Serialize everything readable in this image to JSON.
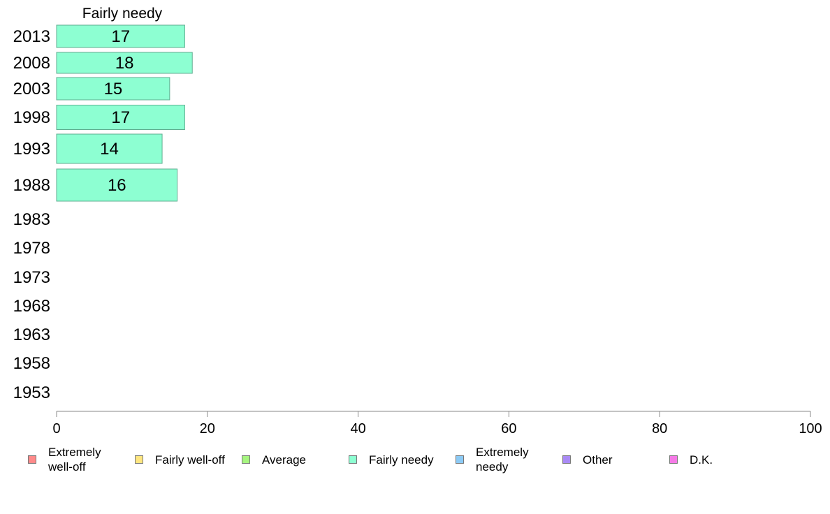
{
  "chart_data": {
    "type": "bar",
    "orientation": "horizontal",
    "title": "Fairly needy",
    "categories": [
      "2013",
      "2008",
      "2003",
      "1998",
      "1993",
      "1988",
      "1983",
      "1978",
      "1973",
      "1968",
      "1963",
      "1958",
      "1953"
    ],
    "series": [
      {
        "name": "Fairly needy",
        "color": "#8dffd2",
        "values": [
          17,
          18,
          15,
          17,
          14,
          16,
          null,
          null,
          null,
          null,
          null,
          null,
          null
        ]
      }
    ],
    "data_labels": [
      "17",
      "18",
      "15",
      "17",
      "14",
      "16"
    ],
    "xlim": [
      0,
      100
    ],
    "xticks": [
      "0",
      "20",
      "40",
      "60",
      "80",
      "100"
    ],
    "grid": false
  },
  "legend": {
    "placement": "bottom",
    "items": [
      {
        "label": "Extremely\nwell-off",
        "color": "#ff8a8a"
      },
      {
        "label": "Fairly well-off",
        "color": "#ffe680"
      },
      {
        "label": "Average",
        "color": "#a6f580"
      },
      {
        "label": "Fairly needy",
        "color": "#8dffd2"
      },
      {
        "label": "Extremely\nneedy",
        "color": "#8ccaf5"
      },
      {
        "label": "Other",
        "color": "#a98af5"
      },
      {
        "label": "D.K.",
        "color": "#f57ae6"
      }
    ]
  }
}
